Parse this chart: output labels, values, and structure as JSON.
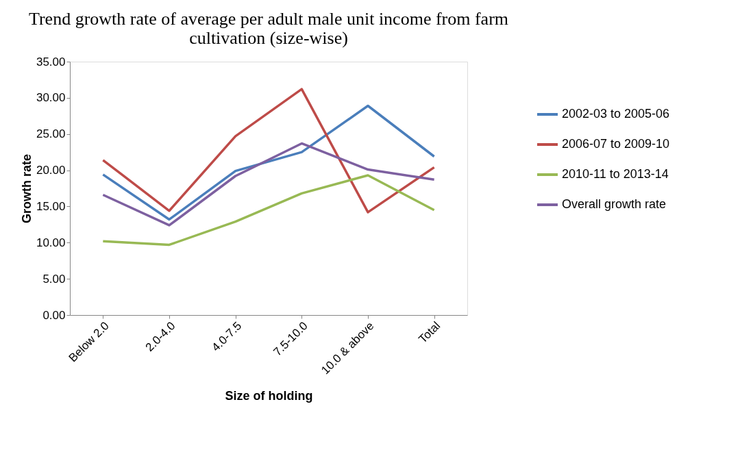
{
  "chart_data": {
    "type": "line",
    "title": "Trend growth rate of average per adult male unit income from farm cultivation (size-wise)",
    "xlabel": "Size of holding",
    "ylabel": "Growth rate",
    "categories": [
      "Below 2.0",
      "2.0-4.0",
      "4.0-7.5",
      "7.5-10.0",
      "10.0 & above",
      "Total"
    ],
    "series": [
      {
        "name": "2002-03 to 2005-06",
        "color": "#4a7ebb",
        "values": [
          19.4,
          13.2,
          19.9,
          22.5,
          28.9,
          21.9
        ]
      },
      {
        "name": "2006-07 to 2009-10",
        "color": "#be4b48",
        "values": [
          21.4,
          14.4,
          24.7,
          31.2,
          14.2,
          20.4
        ]
      },
      {
        "name": "2010-11 to 2013-14",
        "color": "#98b954",
        "values": [
          10.2,
          9.7,
          12.9,
          16.8,
          19.3,
          14.5
        ]
      },
      {
        "name": "Overall growth rate",
        "color": "#7d60a0",
        "values": [
          16.6,
          12.4,
          19.2,
          23.7,
          20.1,
          18.7
        ]
      }
    ],
    "ylim": [
      0,
      35
    ],
    "yticks": [
      {
        "value": 0,
        "label": "0.00"
      },
      {
        "value": 5,
        "label": "5.00"
      },
      {
        "value": 10,
        "label": "10.00"
      },
      {
        "value": 15,
        "label": "15.00"
      },
      {
        "value": 20,
        "label": "20.00"
      },
      {
        "value": 25,
        "label": "25.00"
      },
      {
        "value": 30,
        "label": "30.00"
      },
      {
        "value": 35,
        "label": "35.00"
      }
    ],
    "grid": false,
    "legend": "right",
    "marker": "none",
    "line_style": "solid"
  }
}
